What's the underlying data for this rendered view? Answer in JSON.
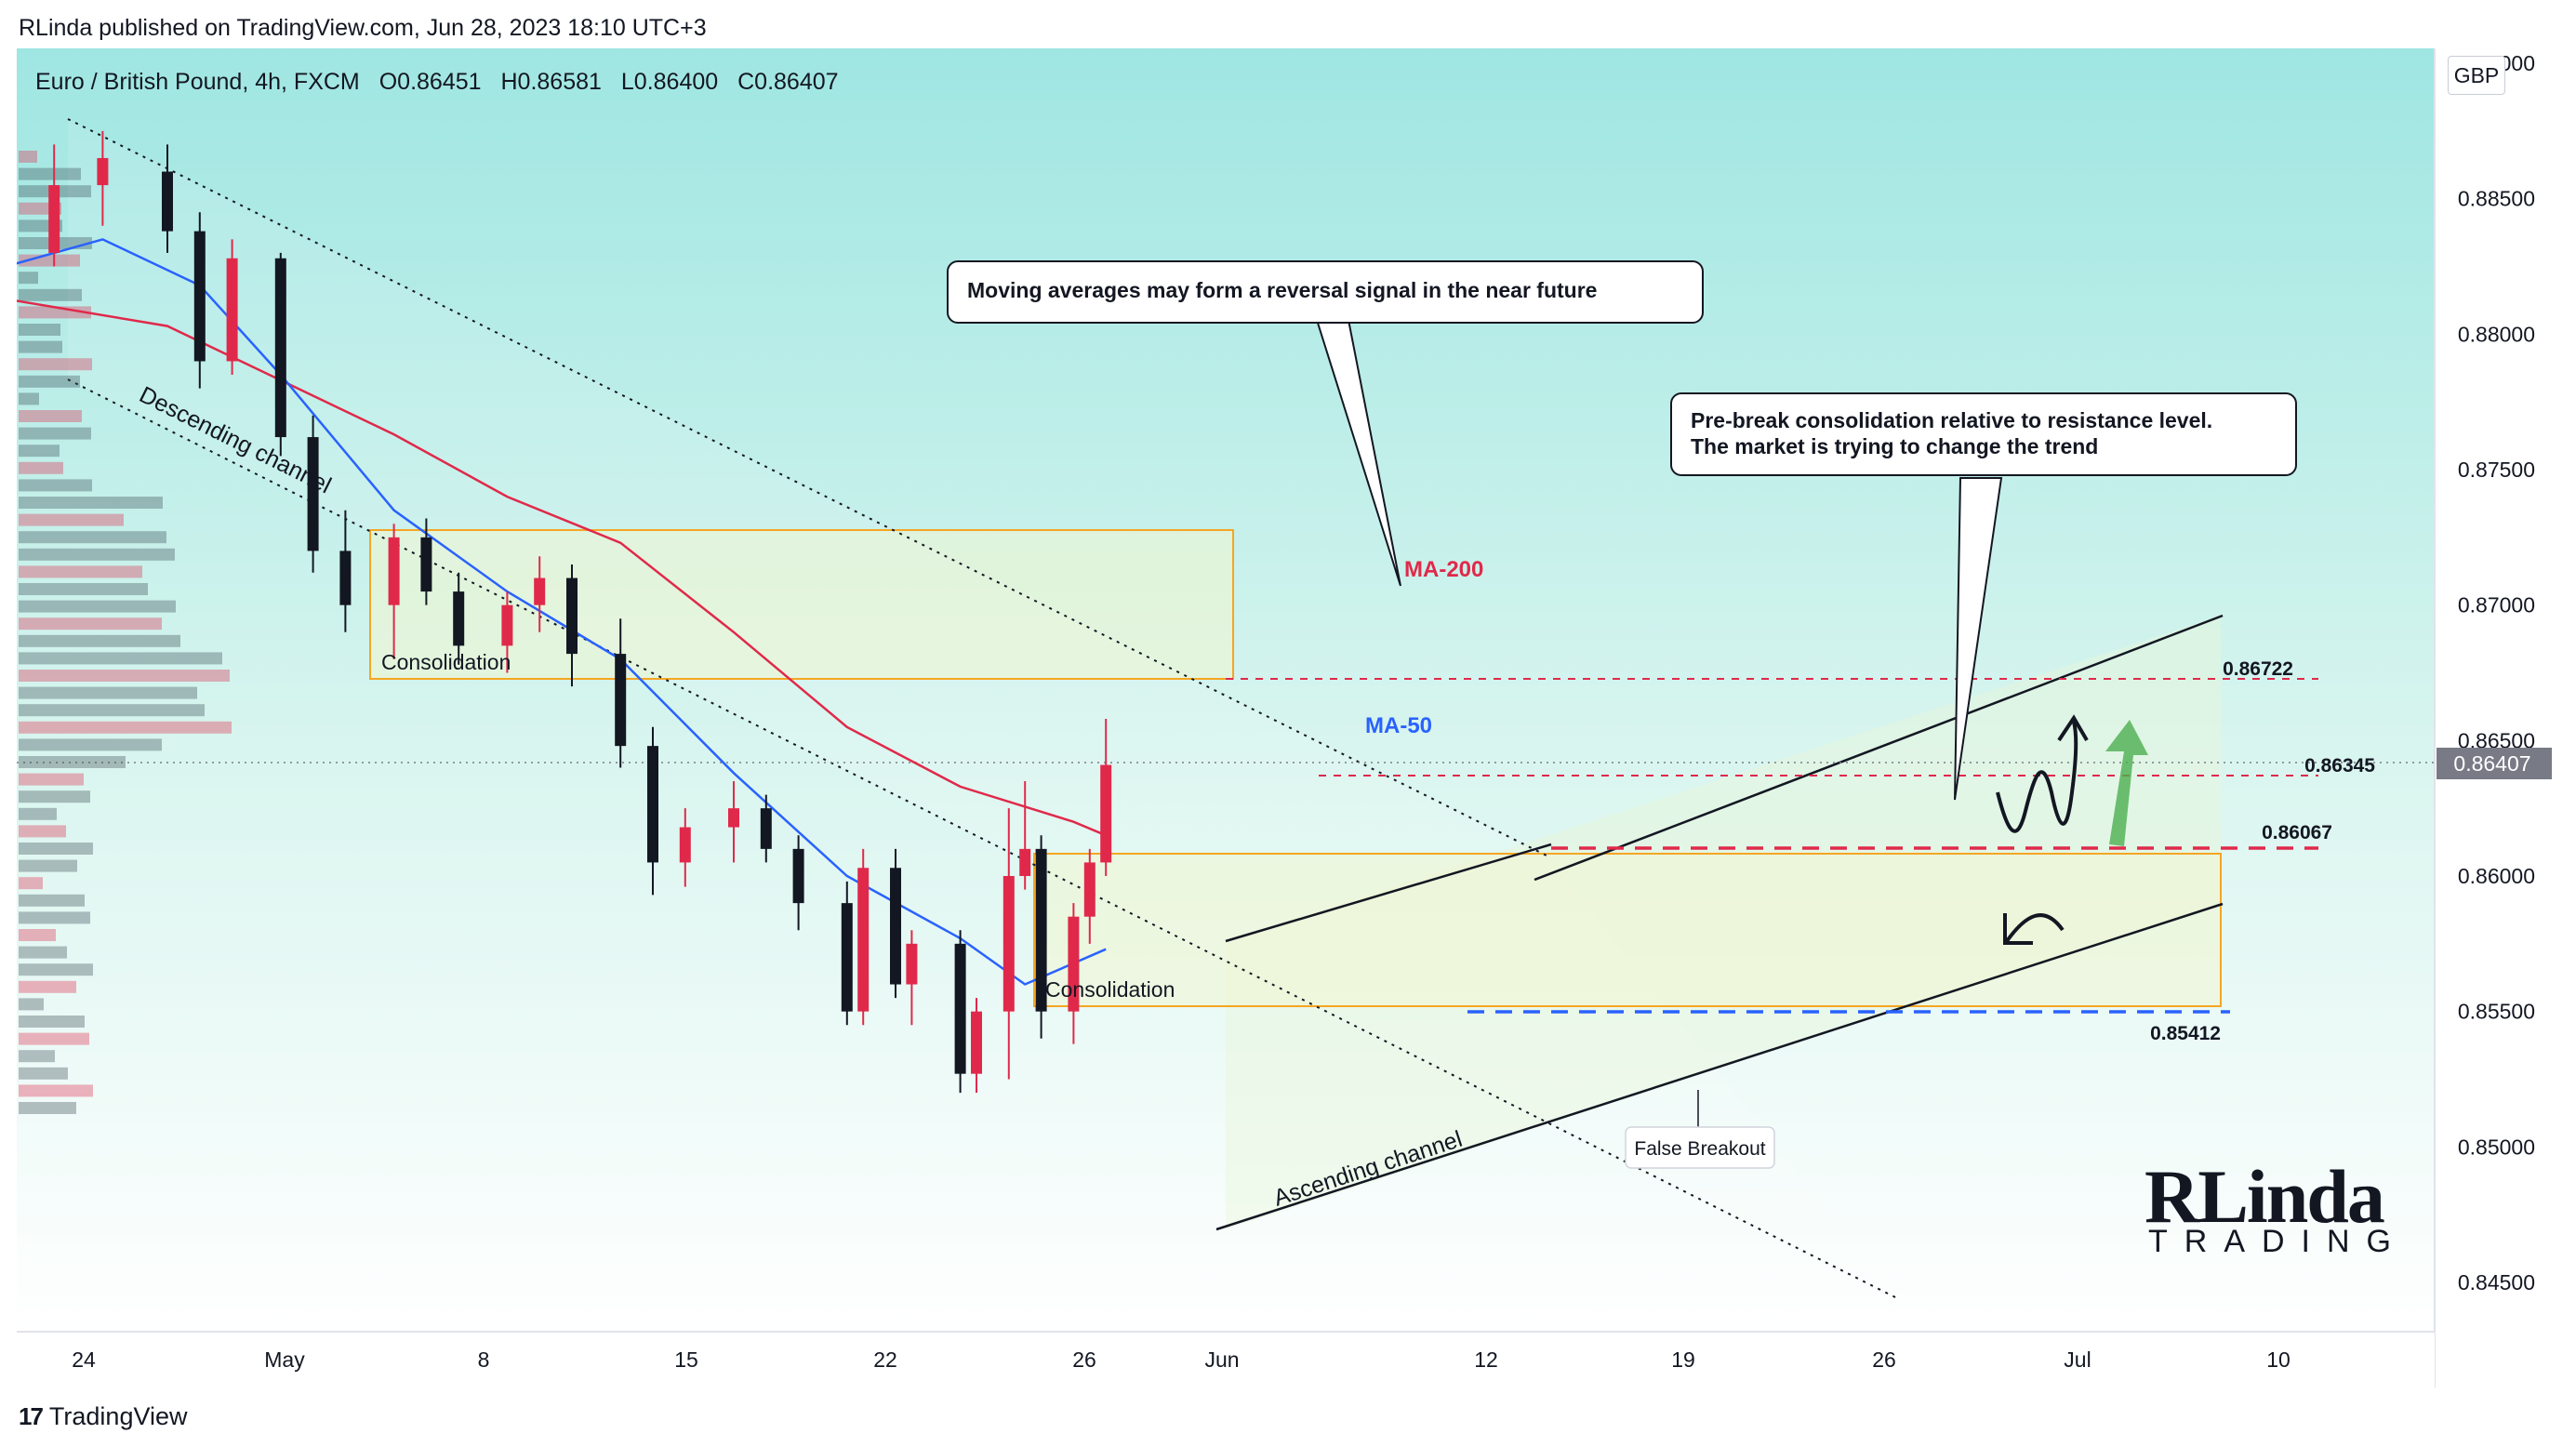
{
  "header": {
    "publisher": "RLinda published on TradingView.com, Jun 28, 2023 18:10 UTC+3"
  },
  "legend": {
    "symbol": "Euro / British Pound, 4h, FXCM",
    "open": "O0.86451",
    "high": "H0.86581",
    "low": "L0.86400",
    "close": "C0.86407"
  },
  "price_axis": {
    "currency": "GBP",
    "current_price": "0.86407",
    "current_price_color": "#787b86"
  },
  "footer": {
    "brand": "TradingView",
    "logo_glyph": "17"
  },
  "watermark_logo": {
    "top": "RLinda",
    "bottom": "TRADING"
  },
  "annotations": {
    "callout_ma": "Moving averages may form a reversal signal in the near future",
    "callout_pre_line1": "Pre-break consolidation relative to resistance level.",
    "callout_pre_line2": "The market is trying to change the trend",
    "ma200": "MA-200",
    "ma50": "MA-50",
    "descending_channel": "Descending channel",
    "ascending_channel": "Ascending channel",
    "consolidation": "Consolidation",
    "false_breakout": "False Breakout",
    "level_86722": "0.86722",
    "level_86345": "0.86345",
    "level_86067": "0.86067",
    "level_85412": "0.85412"
  },
  "colors": {
    "bg_top": "#9fe6e2",
    "bg_bottom": "#ffffff",
    "bull": "#e0294a",
    "bear": "#131722",
    "ma200": "#e0294a",
    "ma50": "#2962ff",
    "consolidation_border": "#f5a623",
    "support_line": "#2962ff",
    "resistance_line": "#e0294a",
    "arrow_green": "#4caf50"
  },
  "chart_data": {
    "type": "candlestick",
    "title": "Euro / British Pound, 4h, FXCM",
    "ylim": [
      0.8425,
      0.8912
    ],
    "yticks": [
      "0.89000",
      "0.88500",
      "0.88000",
      "0.87500",
      "0.87000",
      "0.86500",
      "0.86000",
      "0.85500",
      "0.85000",
      "0.84500"
    ],
    "xticks": [
      "24",
      "May",
      "8",
      "15",
      "22",
      "26",
      "Jun",
      "12",
      "19",
      "26",
      "Jul",
      "10"
    ],
    "series": [
      {
        "name": "MA-200",
        "points": [
          [
            "Apr 21",
            0.8813
          ],
          [
            "May 1",
            0.8803
          ],
          [
            "May 8",
            0.8783
          ],
          [
            "May 15",
            0.8763
          ],
          [
            "May 22",
            0.874
          ],
          [
            "May 29",
            0.8723
          ],
          [
            "Jun 5",
            0.869
          ],
          [
            "Jun 12",
            0.8655
          ],
          [
            "Jun 19",
            0.8633
          ],
          [
            "Jun 26",
            0.862
          ],
          [
            "Jun 28",
            0.8615
          ]
        ]
      },
      {
        "name": "MA-50",
        "points": [
          [
            "Apr 21",
            0.8825
          ],
          [
            "Apr 27",
            0.8835
          ],
          [
            "May 3",
            0.8818
          ],
          [
            "May 8",
            0.8785
          ],
          [
            "May 15",
            0.8735
          ],
          [
            "May 22",
            0.8705
          ],
          [
            "May 29",
            0.868
          ],
          [
            "Jun 5",
            0.8638
          ],
          [
            "Jun 12",
            0.86
          ],
          [
            "Jun 19",
            0.8577
          ],
          [
            "Jun 23",
            0.856
          ],
          [
            "Jun 28",
            0.8573
          ]
        ]
      }
    ],
    "levels": [
      0.86722,
      0.86345,
      0.86067,
      0.85412
    ],
    "candles_approx": [
      [
        "Apr 21",
        0.881,
        0.8835,
        0.88,
        0.883
      ],
      [
        "Apr 24",
        0.883,
        0.887,
        0.8825,
        0.8855
      ],
      [
        "Apr 27",
        0.8855,
        0.8875,
        0.884,
        0.8865
      ],
      [
        "May 1",
        0.886,
        0.887,
        0.883,
        0.8838
      ],
      [
        "May 3",
        0.8838,
        0.8845,
        0.878,
        0.879
      ],
      [
        "May 5",
        0.879,
        0.8835,
        0.8785,
        0.8828
      ],
      [
        "May 8",
        0.8828,
        0.883,
        0.8755,
        0.8762
      ],
      [
        "May 10",
        0.8762,
        0.877,
        0.8712,
        0.872
      ],
      [
        "May 12",
        0.872,
        0.8735,
        0.869,
        0.87
      ],
      [
        "May 15",
        0.87,
        0.873,
        0.868,
        0.8725
      ],
      [
        "May 17",
        0.8725,
        0.8732,
        0.87,
        0.8705
      ],
      [
        "May 19",
        0.8705,
        0.8712,
        0.8678,
        0.8685
      ],
      [
        "May 22",
        0.8685,
        0.8705,
        0.8675,
        0.87
      ],
      [
        "May 24",
        0.87,
        0.8718,
        0.869,
        0.871
      ],
      [
        "May 26",
        0.871,
        0.8715,
        0.867,
        0.8682
      ],
      [
        "May 29",
        0.8682,
        0.8695,
        0.864,
        0.8648
      ],
      [
        "May 31",
        0.8648,
        0.8655,
        0.8593,
        0.8605
      ],
      [
        "Jun 2",
        0.8605,
        0.8625,
        0.8596,
        0.8618
      ],
      [
        "Jun 5",
        0.8618,
        0.8635,
        0.8605,
        0.8625
      ],
      [
        "Jun 7",
        0.8625,
        0.863,
        0.8605,
        0.861
      ],
      [
        "Jun 9",
        0.861,
        0.8615,
        0.858,
        0.859
      ],
      [
        "Jun 12",
        0.859,
        0.8598,
        0.8545,
        0.855
      ],
      [
        "Jun 13",
        0.855,
        0.861,
        0.8545,
        0.8603
      ],
      [
        "Jun 15",
        0.8603,
        0.861,
        0.8555,
        0.856
      ],
      [
        "Jun 16",
        0.856,
        0.858,
        0.8545,
        0.8575
      ],
      [
        "Jun 19",
        0.8575,
        0.858,
        0.852,
        0.8527
      ],
      [
        "Jun 20",
        0.8527,
        0.8555,
        0.852,
        0.855
      ],
      [
        "Jun 22",
        0.855,
        0.8625,
        0.8525,
        0.86
      ],
      [
        "Jun 23",
        0.86,
        0.8635,
        0.8595,
        0.861
      ],
      [
        "Jun 24",
        0.861,
        0.8615,
        0.854,
        0.855
      ],
      [
        "Jun 26",
        0.855,
        0.859,
        0.8538,
        0.8585
      ],
      [
        "Jun 27",
        0.8585,
        0.861,
        0.8575,
        0.8605
      ],
      [
        "Jun 28",
        0.8605,
        0.8658,
        0.86,
        0.8641
      ]
    ]
  }
}
